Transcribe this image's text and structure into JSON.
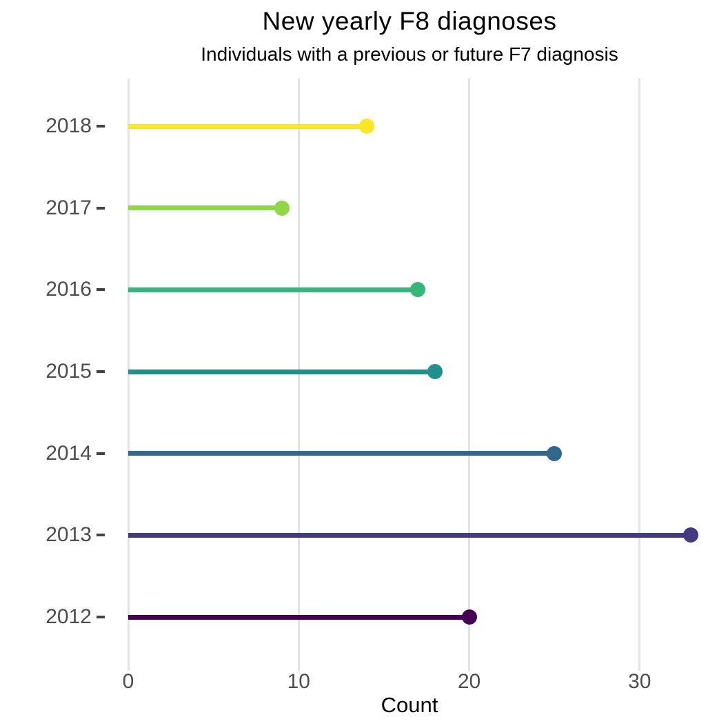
{
  "title": "New yearly F8 diagnoses",
  "subtitle": "Individuals with a previous or future F7 diagnosis",
  "chart_data": {
    "type": "bar",
    "style": "lollipop",
    "orientation": "horizontal",
    "title": "New yearly F8 diagnoses",
    "subtitle": "Individuals with a previous or future F7 diagnosis",
    "categories": [
      "2018",
      "2017",
      "2016",
      "2015",
      "2014",
      "2013",
      "2012"
    ],
    "values": [
      14,
      9,
      17,
      18,
      25,
      33,
      20
    ],
    "colors": [
      "#FDE725",
      "#8FD744",
      "#35B779",
      "#21908C",
      "#31688E",
      "#443A83",
      "#440154"
    ],
    "xlabel": "Count",
    "ylabel": "",
    "xlim": [
      0,
      34.65
    ],
    "xticks": [
      0,
      10,
      20,
      30
    ],
    "grid": "vertical-major-only",
    "legend": "none",
    "background": "#ffffff",
    "gridline_color": "#e3e3e3",
    "tick_label_color": "#4d4d4d"
  }
}
